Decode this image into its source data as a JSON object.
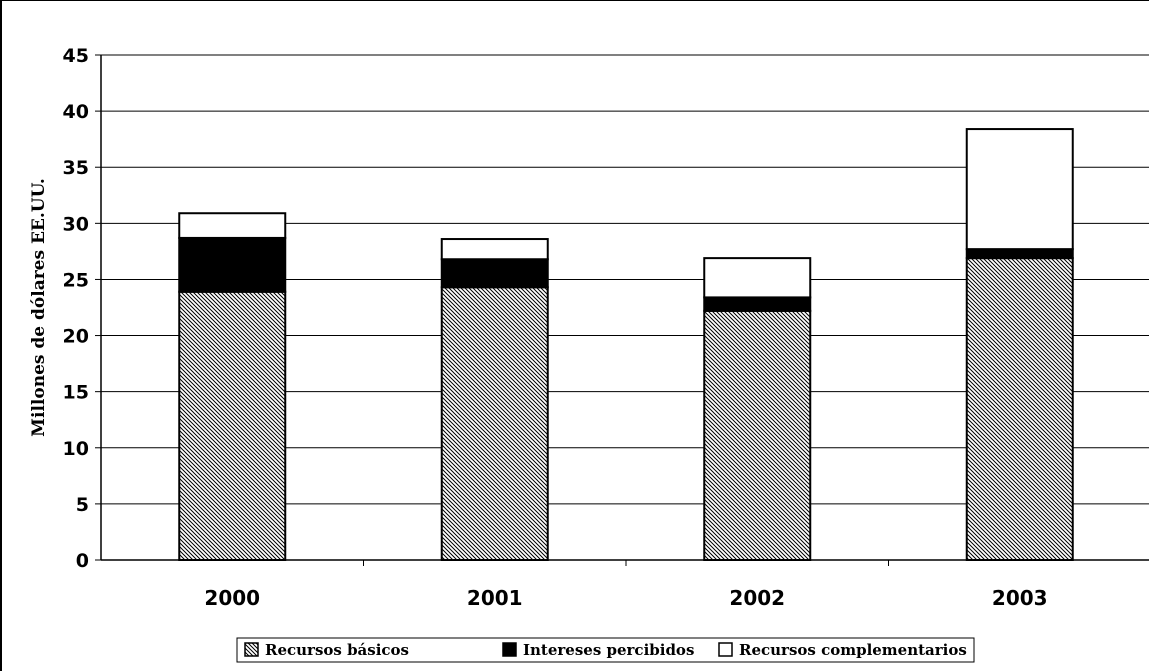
{
  "chart_data": {
    "type": "bar",
    "stacked": true,
    "categories": [
      "2000",
      "2001",
      "2002",
      "2003"
    ],
    "series": [
      {
        "name": "Recursos básicos",
        "values": [
          23.9,
          24.3,
          22.2,
          26.9
        ],
        "fill": "hatch"
      },
      {
        "name": "Intereses percibidos",
        "values": [
          4.8,
          2.5,
          1.2,
          0.8
        ],
        "fill": "#000000"
      },
      {
        "name": "Recursos complementarios",
        "values": [
          2.2,
          1.8,
          3.5,
          10.7
        ],
        "fill": "#ffffff"
      }
    ],
    "title": "",
    "xlabel": "",
    "ylabel": "Millones de dólares EE.UU.",
    "ylim": [
      0,
      45
    ],
    "yticks": [
      "0",
      "5",
      "10",
      "15",
      "20",
      "25",
      "30",
      "35",
      "40",
      "45"
    ],
    "grid": true,
    "legend_position": "bottom"
  }
}
